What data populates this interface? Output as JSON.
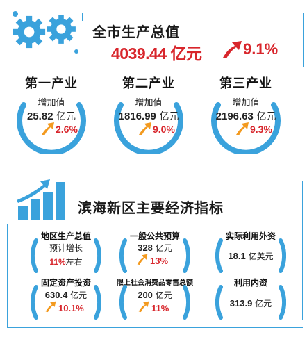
{
  "top": {
    "title": "全市生产总值",
    "gdp_value": "4039.44 亿元",
    "gdp_growth": "9.1%",
    "industries": [
      {
        "title": "第一产业",
        "sub": "增加值",
        "value": "25.82",
        "unit": "亿元",
        "growth": "2.6%"
      },
      {
        "title": "第二产业",
        "sub": "增加值",
        "value": "1816.99",
        "unit": "亿元",
        "growth": "9.0%"
      },
      {
        "title": "第三产业",
        "sub": "增加值",
        "value": "2196.63",
        "unit": "亿元",
        "growth": "9.3%"
      }
    ]
  },
  "bottom": {
    "title": "滨海新区主要经济指标",
    "indicators": [
      {
        "title": "地区生产总值",
        "line1": "预计增长",
        "growth_pre": "11%",
        "growth_post": "左右"
      },
      {
        "title": "一般公共预算",
        "value": "328",
        "unit": "亿元",
        "growth": "13%"
      },
      {
        "title": "实际利用外资",
        "value": "18.1",
        "unit": "亿美元"
      },
      {
        "title": "固定资产投资",
        "value": "630.4",
        "unit": "亿元",
        "growth": "10.1%"
      },
      {
        "title": "限上社会消费品零售总额",
        "value": "200",
        "unit": "亿元",
        "growth": "11%"
      },
      {
        "title": "利用内资",
        "value": "313.9",
        "unit": "亿元"
      }
    ]
  },
  "colors": {
    "accent_blue": "#3aa2dc",
    "growth_red": "#d8262c",
    "arrow_orange": "#f39a1f"
  },
  "icons": {
    "top": "gears-icon",
    "bottom": "bar-chart-growth-icon",
    "growth": "up-arrow-icon"
  }
}
